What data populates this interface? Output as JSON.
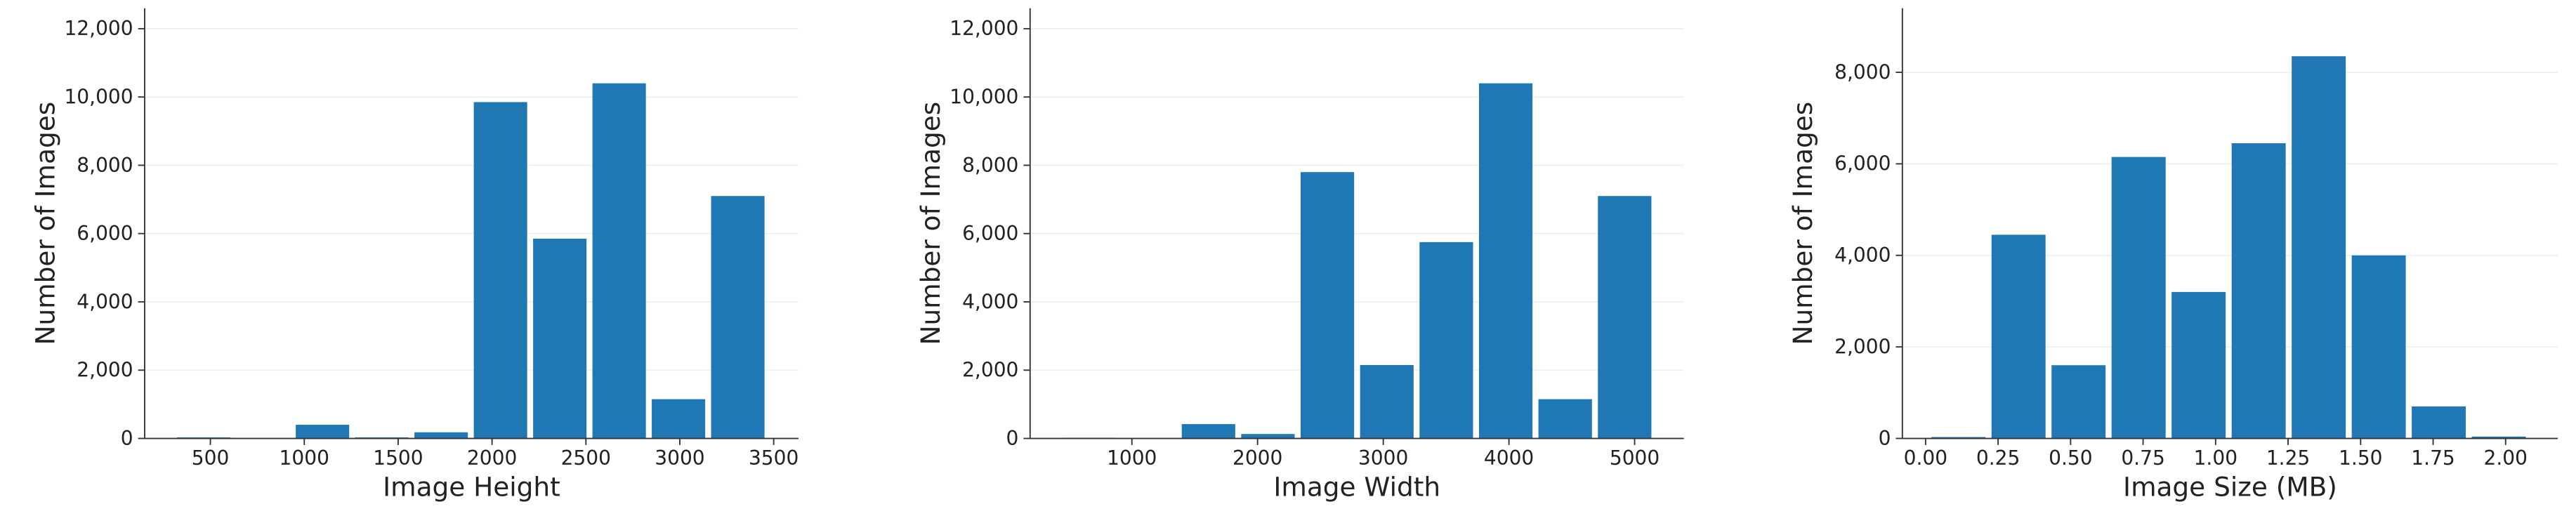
{
  "chart_data": [
    {
      "type": "histogram",
      "x_label": "Image Height",
      "y_label": "Number of Images",
      "color": "#1f77b4",
      "grid": true,
      "bins": [
        307,
        623,
        939,
        1255,
        1571,
        1887,
        2203,
        2519,
        2835,
        3151,
        3467
      ],
      "values": [
        30,
        0,
        400,
        30,
        180,
        9850,
        5850,
        10400,
        1150,
        7100
      ],
      "xlim": [
        150,
        3632
      ],
      "xticks": [
        500,
        1000,
        1500,
        2000,
        2500,
        3000,
        3500
      ],
      "ylim": [
        0,
        12600
      ],
      "yticks": [
        0,
        {
          "value": 2000,
          "label": "2,000"
        },
        {
          "value": 4000,
          "label": "4,000"
        },
        {
          "value": 6000,
          "label": "6,000"
        },
        {
          "value": 8000,
          "label": "8,000"
        },
        {
          "value": 10000,
          "label": "10,000"
        },
        {
          "value": 12000,
          "label": "12,000"
        }
      ]
    },
    {
      "type": "histogram",
      "x_label": "Image Width",
      "y_label": "Number of Images",
      "color": "#1f77b4",
      "grid": true,
      "bins": [
        427,
        900,
        1373,
        1846,
        2319,
        2792,
        3265,
        3738,
        4211,
        4684,
        5157
      ],
      "values": [
        20,
        0,
        420,
        130,
        7800,
        2150,
        5750,
        10400,
        1150,
        7100
      ],
      "xlim": [
        190,
        5392
      ],
      "xticks": [
        1000,
        2000,
        3000,
        4000,
        5000
      ],
      "ylim": [
        0,
        12600
      ],
      "yticks": [
        0,
        {
          "value": 2000,
          "label": "2,000"
        },
        {
          "value": 4000,
          "label": "4,000"
        },
        {
          "value": 6000,
          "label": "6,000"
        },
        {
          "value": 8000,
          "label": "8,000"
        },
        {
          "value": 10000,
          "label": "10,000"
        },
        {
          "value": 12000,
          "label": "12,000"
        }
      ]
    },
    {
      "type": "histogram",
      "x_label": "Image Size (MB)",
      "y_label": "Number of Images",
      "color": "#1f77b4",
      "grid": true,
      "bins": [
        0.01,
        0.217,
        0.424,
        0.631,
        0.838,
        1.045,
        1.252,
        1.459,
        1.666,
        1.873,
        2.08
      ],
      "values": [
        30,
        4450,
        1600,
        6150,
        3200,
        6450,
        8350,
        4000,
        700,
        40
      ],
      "xlim": [
        -0.08,
        2.18
      ],
      "xticks": [
        {
          "value": 0,
          "label": "0.00"
        },
        0.25,
        {
          "value": 0.5,
          "label": "0.50"
        },
        0.75,
        {
          "value": 1,
          "label": "1.00"
        },
        1.25,
        {
          "value": 1.5,
          "label": "1.50"
        },
        1.75,
        {
          "value": 2,
          "label": "2.00"
        }
      ],
      "ylim": [
        0,
        9400
      ],
      "yticks": [
        0,
        {
          "value": 2000,
          "label": "2,000"
        },
        {
          "value": 4000,
          "label": "4,000"
        },
        {
          "value": 6000,
          "label": "6,000"
        },
        {
          "value": 8000,
          "label": "8,000"
        }
      ]
    }
  ]
}
